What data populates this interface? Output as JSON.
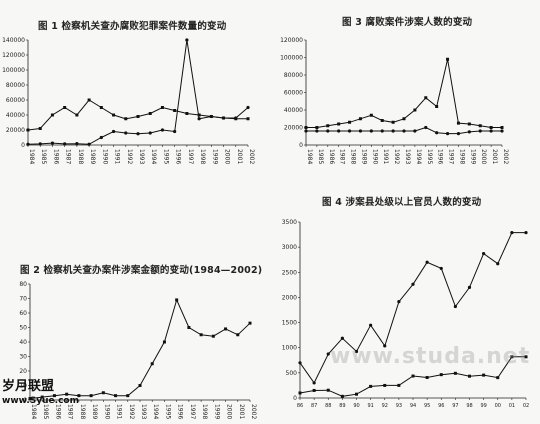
{
  "site": {
    "logo_text": "岁月联盟",
    "logo_url": "www.Syue.com",
    "watermark": "www.studa.net"
  },
  "chart_data": [
    {
      "id": "fig1",
      "type": "line",
      "title": "图 1  检察机关查办腐败犯罪案件数量的变动",
      "ylabel": "",
      "ylim": [
        0,
        140000
      ],
      "y_ticks": [
        0,
        20000,
        40000,
        60000,
        80000,
        100000,
        120000,
        140000
      ],
      "x": [
        1984,
        1985,
        1986,
        1987,
        1988,
        1989,
        1990,
        1991,
        1992,
        1993,
        1994,
        1995,
        1996,
        1997,
        1998,
        1999,
        2000,
        2001,
        2002
      ],
      "legend_position": "top-right",
      "series": [
        {
          "values": [
            1000,
            1500,
            2500,
            1500,
            1800,
            1000,
            10000,
            18000,
            16000,
            15000,
            16000,
            20000,
            18000,
            140000,
            35000,
            38000,
            36000,
            36000,
            50000
          ]
        },
        {
          "values": [
            20000,
            22000,
            40000,
            50000,
            40000,
            60000,
            50000,
            40000,
            35000,
            38000,
            42000,
            50000,
            46000,
            42000,
            40000,
            38000,
            36000,
            35000,
            35000
          ]
        }
      ]
    },
    {
      "id": "fig2",
      "type": "line",
      "title": "图 2  检察机关查办案件涉案金额的变动(1984—2002)",
      "ylabel": "",
      "ylim": [
        0,
        80
      ],
      "y_ticks": [
        0,
        10,
        20,
        30,
        40,
        50,
        60,
        70,
        80
      ],
      "x": [
        1984,
        1985,
        1986,
        1987,
        1988,
        1989,
        1990,
        1991,
        1992,
        1993,
        1994,
        1995,
        1996,
        1997,
        1998,
        1999,
        2000,
        2001,
        2002
      ],
      "series": [
        {
          "values": [
            1,
            2,
            3,
            4,
            3,
            3,
            5,
            3,
            3,
            10,
            25,
            40,
            69,
            50,
            45,
            44,
            49,
            45,
            53
          ]
        }
      ]
    },
    {
      "id": "fig3",
      "type": "line",
      "title": "图 3  腐败案件涉案人数的变动",
      "ylabel": "",
      "ylim": [
        0,
        120000
      ],
      "y_ticks": [
        0,
        20000,
        40000,
        60000,
        80000,
        100000,
        120000
      ],
      "x": [
        1984,
        1985,
        1986,
        1987,
        1988,
        1989,
        1990,
        1991,
        1992,
        1993,
        1994,
        1995,
        1996,
        1997,
        1998,
        1999,
        2000,
        2001,
        2002
      ],
      "legend_position": "top-left",
      "series": [
        {
          "values": [
            20000,
            20000,
            22000,
            24000,
            26000,
            30000,
            34000,
            28000,
            26000,
            30000,
            40000,
            54000,
            44000,
            98000,
            25000,
            24000,
            22000,
            20000,
            20000
          ]
        },
        {
          "values": [
            16000,
            16000,
            16000,
            16000,
            16000,
            16000,
            16000,
            16000,
            16000,
            16000,
            16000,
            20000,
            14000,
            13000,
            13000,
            15000,
            16000,
            16000,
            16000
          ]
        }
      ]
    },
    {
      "id": "fig4",
      "type": "line",
      "title": "图 4  涉案县处级以上官员人数的变动",
      "ylabel": "",
      "ylim": [
        0,
        3500
      ],
      "y_ticks": [
        0,
        500,
        1000,
        1500,
        2000,
        2500,
        3000,
        3500
      ],
      "x": [
        1986,
        1987,
        1988,
        1989,
        1990,
        1991,
        1992,
        1993,
        1994,
        1995,
        1996,
        1997,
        1998,
        1999,
        2000,
        2001,
        2002
      ],
      "x_ticks": [
        "1986",
        "1987",
        "1988",
        "1989",
        "1990",
        "1991",
        "1992",
        "1993",
        "1994",
        "1995",
        "1996",
        "1997",
        "1998",
        "1999",
        "2000",
        "2001",
        "2002"
      ],
      "legend_position": "top-left",
      "series": [
        {
          "values": [
            700,
            300,
            875,
            1188,
            924,
            1448,
            1037,
            1916,
            2262,
            2699,
            2577,
            1820,
            2200,
            2871,
            2670,
            3289,
            3289
          ]
        },
        {
          "values": [
            100,
            150,
            155,
            33,
            76,
            231,
            250,
            251,
            437,
            408,
            464,
            491,
            434,
            455,
            405,
            819,
            819
          ]
        }
      ]
    }
  ]
}
